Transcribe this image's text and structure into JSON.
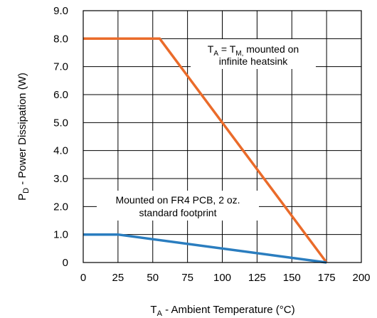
{
  "chart_data": {
    "type": "line",
    "xlabel": {
      "main": "T",
      "sub": "A",
      "rest": " - Ambient Temperature (°C)"
    },
    "ylabel": {
      "main": "P",
      "sub": "D",
      "rest": " - Power Dissipation  (W)"
    },
    "xlim": [
      0,
      200
    ],
    "ylim": [
      0,
      9
    ],
    "x_ticks": [
      "0",
      "25",
      "50",
      "75",
      "100",
      "125",
      "150",
      "175",
      "200"
    ],
    "y_ticks": [
      "0",
      "1.0",
      "2.0",
      "3.0",
      "4.0",
      "5.0",
      "6.0",
      "7.0",
      "8.0",
      "9.0"
    ],
    "grid": true,
    "series": [
      {
        "color": "#ea6b2a",
        "x": [
          0,
          55,
          175
        ],
        "y": [
          8.0,
          8.0,
          0
        ]
      },
      {
        "color": "#2a7dbf",
        "x": [
          0,
          25,
          175
        ],
        "y": [
          1.0,
          1.0,
          0
        ]
      }
    ],
    "annotations": [
      {
        "line1": {
          "t1": "T",
          "s1": "A",
          "t2": " = T",
          "s2": "M,",
          "t3": " mounted on"
        },
        "line2": "infinite heatsink"
      },
      {
        "line1": "Mounted on FR4 PCB, 2 oz.",
        "line2": "standard footprint"
      }
    ]
  }
}
